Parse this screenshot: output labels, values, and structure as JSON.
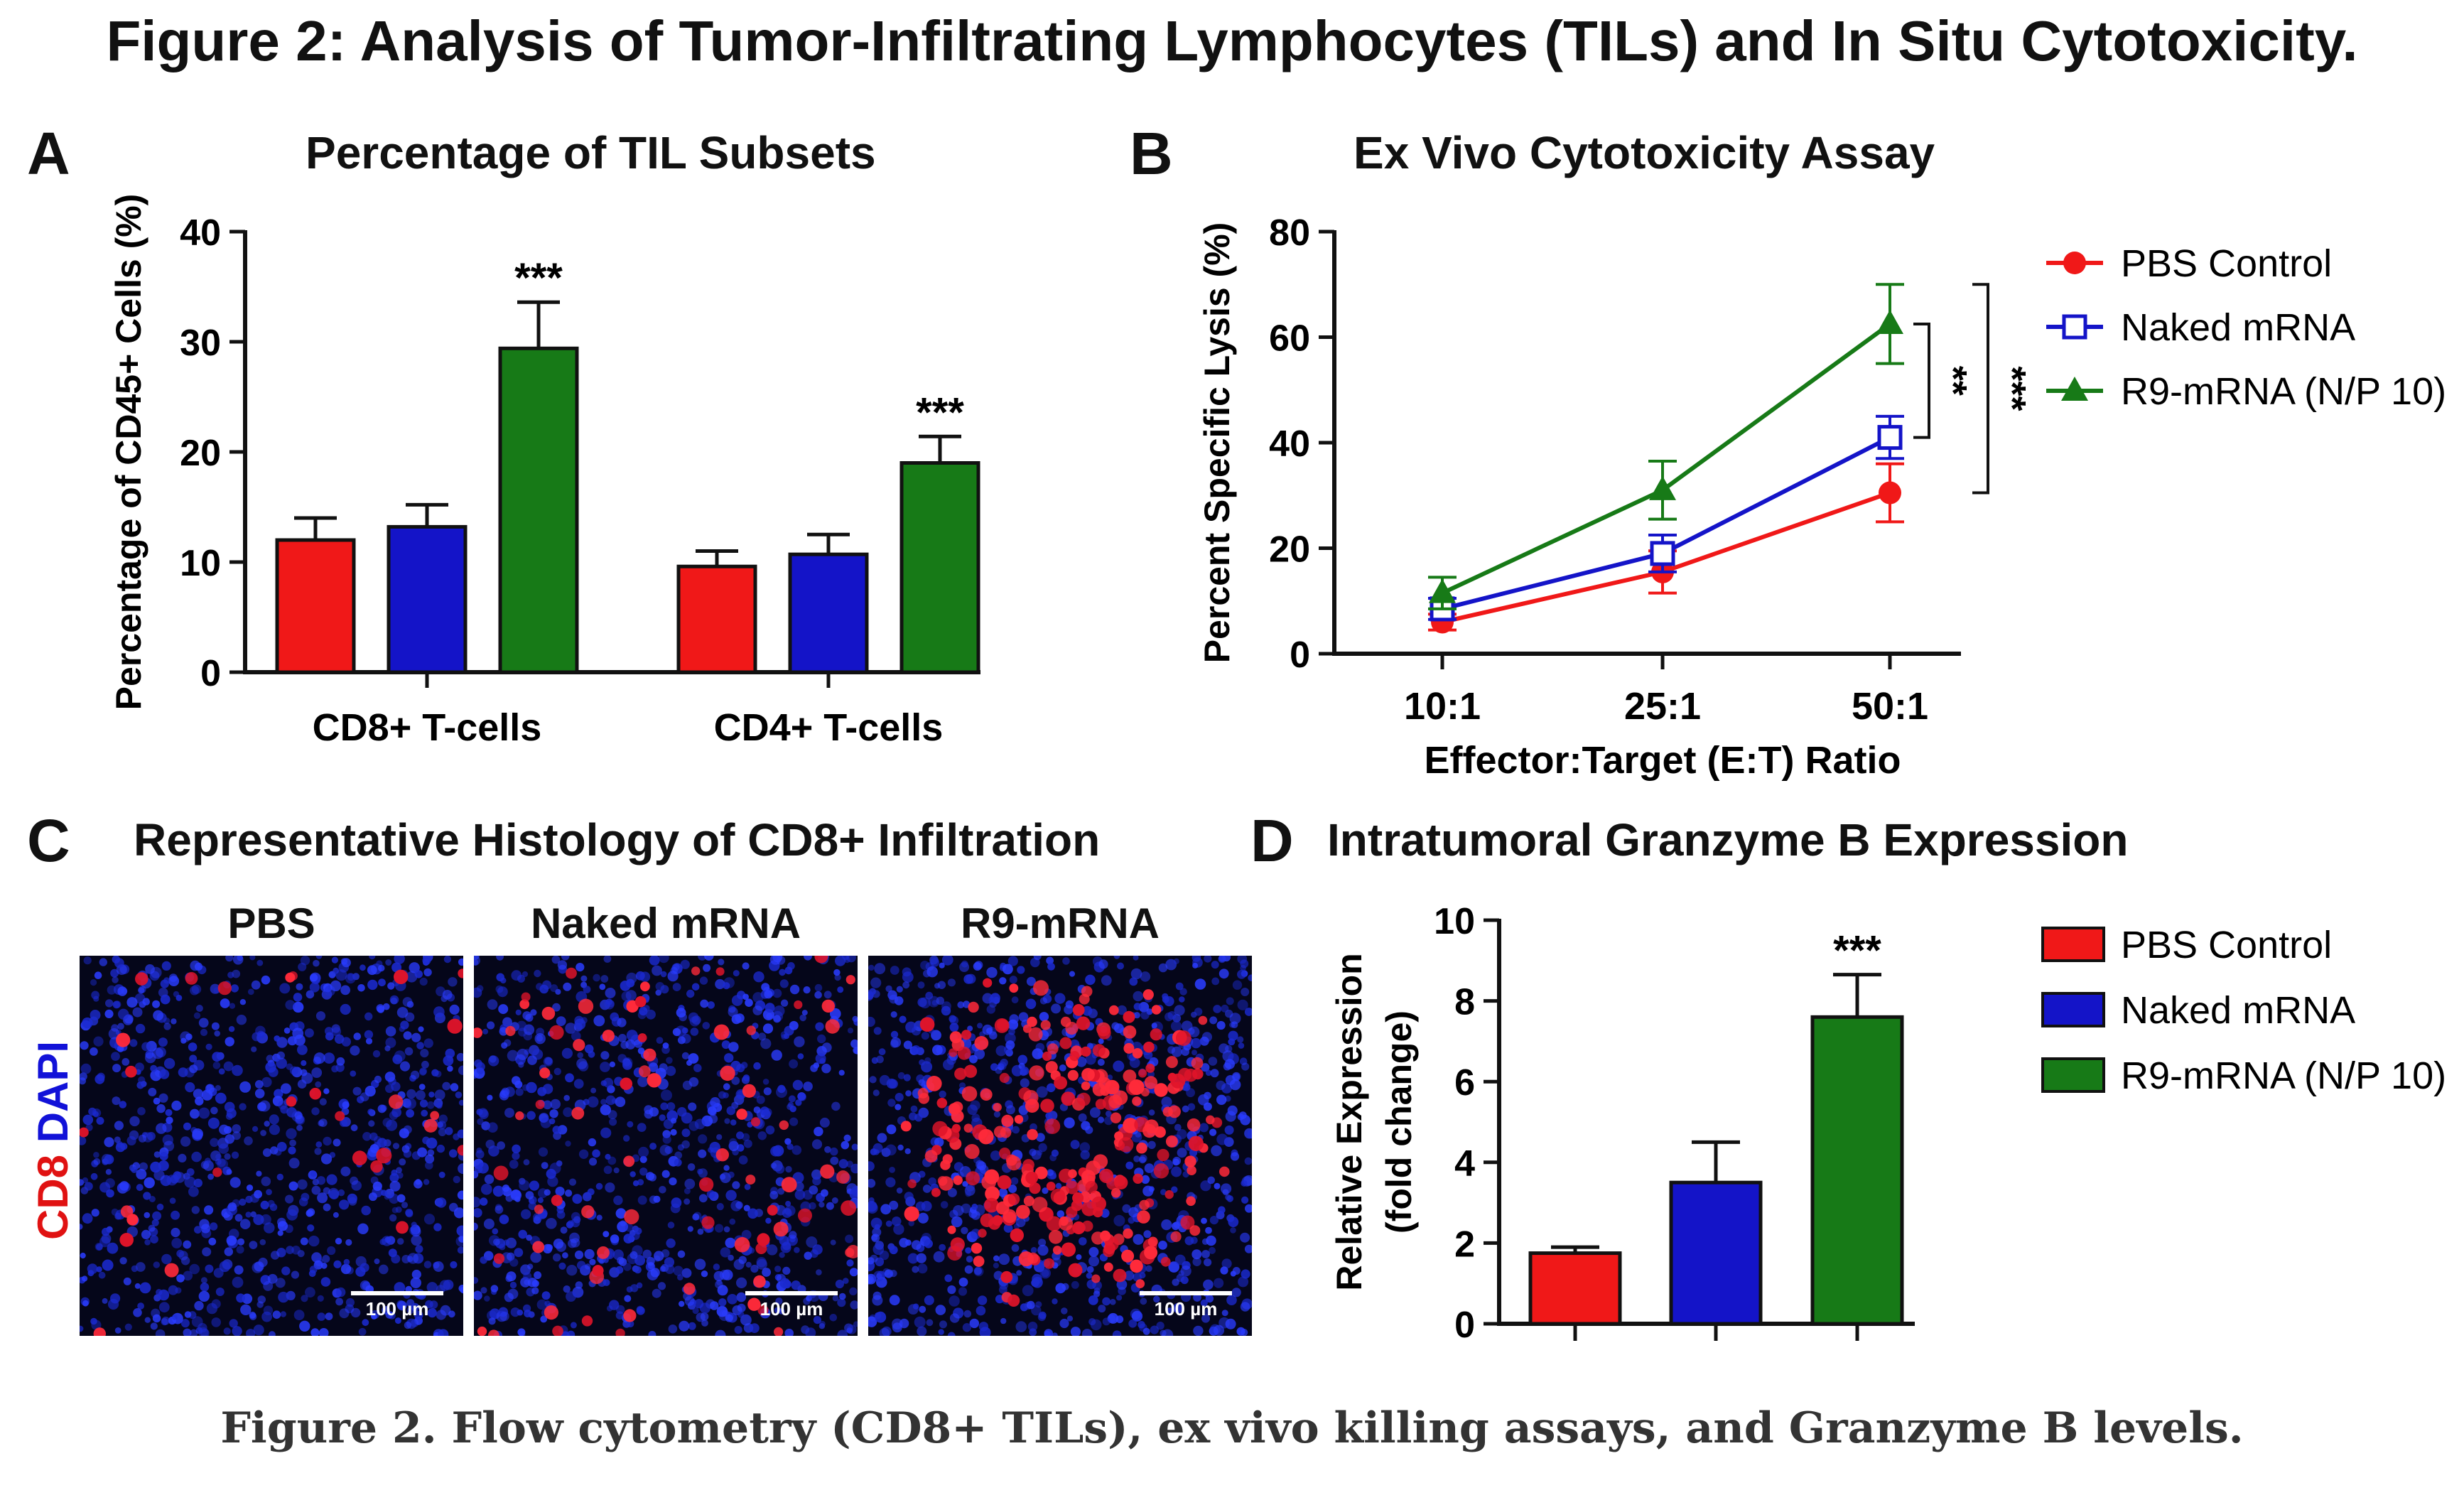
{
  "figure_title": "Figure 2: Analysis of Tumor-Infiltrating Lymphocytes (TILs) and In Situ Cytotoxicity.",
  "caption": "Figure 2. Flow cytometry (CD8+ TILs), ex vivo killing assays, and Granzyme B levels.",
  "colors": {
    "red": "#f01818",
    "blue": "#1414c8",
    "green": "#177a17"
  },
  "panels": {
    "A": {
      "letter": "A",
      "title": "Percentage of TIL Subsets"
    },
    "B": {
      "letter": "B",
      "title": "Ex Vivo Cytotoxicity Assay"
    },
    "C": {
      "letter": "C",
      "title": "Representative Histology of CD8+ Infiltration"
    },
    "D": {
      "letter": "D",
      "title": "Intratumoral Granzyme B Expression"
    }
  },
  "histology": {
    "stain_cd8": "CD8",
    "stain_dapi": "DAPI",
    "images": [
      {
        "label": "PBS",
        "scale": "100 µm",
        "cd8_density": "low"
      },
      {
        "label": "Naked mRNA",
        "scale": "100 µm",
        "cd8_density": "medium"
      },
      {
        "label": "R9-mRNA",
        "scale": "100 µm",
        "cd8_density": "high"
      }
    ]
  },
  "chart_data": [
    {
      "panel": "A",
      "type": "bar",
      "title": "Percentage of TIL Subsets",
      "xlabel": "",
      "ylabel": "Percentage of CD45+ Cells (%)",
      "ylim": [
        0,
        40
      ],
      "yticks": [
        "0",
        "10",
        "20",
        "30",
        "40"
      ],
      "categories": [
        "CD8+ T-cells",
        "CD4+ T-cells"
      ],
      "series": [
        {
          "name": "PBS Control",
          "color": "#f01818",
          "values": [
            12.0,
            9.6
          ],
          "errors": [
            2.0,
            1.4
          ]
        },
        {
          "name": "Naked mRNA",
          "color": "#1414c8",
          "values": [
            13.2,
            10.7
          ],
          "errors": [
            2.0,
            1.8
          ]
        },
        {
          "name": "R9-mRNA (N/P 10)",
          "color": "#177a17",
          "values": [
            29.4,
            19.0
          ],
          "errors": [
            4.2,
            2.4
          ]
        }
      ],
      "annotations": [
        {
          "category": 0,
          "series": 2,
          "text": "***"
        },
        {
          "category": 1,
          "series": 2,
          "text": "***"
        }
      ]
    },
    {
      "panel": "B",
      "type": "line",
      "title": "Ex Vivo Cytotoxicity Assay",
      "xlabel": "Effector:Target (E:T) Ratio",
      "ylabel": "Percent Specific Lysis (%)",
      "ylim": [
        0,
        80
      ],
      "yticks": [
        "0",
        "20",
        "40",
        "60",
        "80"
      ],
      "categories": [
        "10:1",
        "25:1",
        "50:1"
      ],
      "series": [
        {
          "name": "PBS Control",
          "color": "#f01818",
          "marker": "circle",
          "values": [
            6,
            15.5,
            30.5
          ],
          "errors": [
            1.5,
            4,
            5.5
          ]
        },
        {
          "name": "Naked mRNA",
          "color": "#1414c8",
          "marker": "open-square",
          "values": [
            8.5,
            19,
            41
          ],
          "errors": [
            2,
            3.5,
            4
          ]
        },
        {
          "name": "R9-mRNA (N/P 10)",
          "color": "#177a17",
          "marker": "triangle",
          "values": [
            11.5,
            31,
            62.5
          ],
          "errors": [
            3,
            5.5,
            7.5
          ]
        }
      ],
      "significance": [
        {
          "between": [
            "R9-mRNA (N/P 10)",
            "Naked mRNA"
          ],
          "text": "**"
        },
        {
          "between": [
            "R9-mRNA (N/P 10)",
            "PBS Control"
          ],
          "text": "***"
        }
      ],
      "legend": "right"
    },
    {
      "panel": "D",
      "type": "bar",
      "title": "Intratumoral Granzyme B Expression",
      "xlabel": "",
      "ylabel": "Relative Expression",
      "ylabel2": "(fold change)",
      "ylim": [
        0,
        10
      ],
      "yticks": [
        "0",
        "2",
        "4",
        "6",
        "8",
        "10"
      ],
      "categories": [
        "PBS Control",
        "Naked mRNA",
        "R9-mRNA (N/P 10)"
      ],
      "series": [
        {
          "name": "Expression",
          "values": [
            1.75,
            3.5,
            7.6
          ],
          "errors": [
            0.15,
            1.0,
            1.05
          ]
        }
      ],
      "bar_colors": [
        "#f01818",
        "#1414c8",
        "#177a17"
      ],
      "annotations": [
        {
          "category": 2,
          "text": "***"
        }
      ],
      "legend": "right"
    }
  ]
}
